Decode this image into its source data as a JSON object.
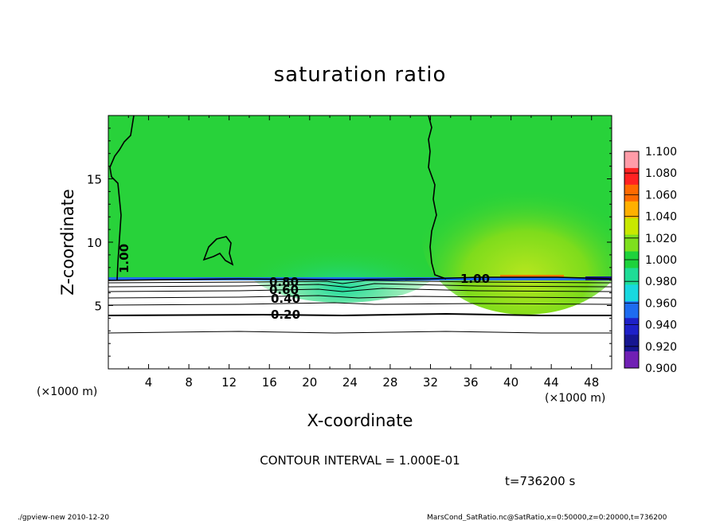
{
  "chart_data": {
    "type": "heatmap",
    "title": "saturation ratio",
    "xlabel": "X-coordinate",
    "ylabel": "Z-coordinate",
    "x_unit": "(×1000 m)",
    "y_unit": "(×1000 m)",
    "xlim": [
      0,
      50
    ],
    "ylim": [
      0,
      20
    ],
    "x_ticks": [
      "4",
      "8",
      "12",
      "16",
      "20",
      "24",
      "28",
      "32",
      "36",
      "40",
      "44",
      "48"
    ],
    "y_ticks": [
      "5",
      "10",
      "15"
    ],
    "contour_interval_text": "CONTOUR INTERVAL = 1.000E-01",
    "time_label": "t=736200 s",
    "contour_labels": [
      "1.00",
      "1.00",
      "0.80",
      "0.60",
      "0.40",
      "0.20"
    ],
    "colorbar": {
      "labels": [
        "1.100",
        "1.080",
        "1.060",
        "1.040",
        "1.020",
        "1.000",
        "0.980",
        "0.960",
        "0.940",
        "0.920",
        "0.900"
      ],
      "colors": [
        "#ff9ca8",
        "#ff2222",
        "#ff6a00",
        "#ffb000",
        "#c8e800",
        "#7ee01e",
        "#1ed23c",
        "#1edc96",
        "#18d8e0",
        "#1e6cf0",
        "#1e20c8",
        "#161691",
        "#7020b4"
      ]
    },
    "fields": {
      "saturated_layer_z": [
        7.1,
        20
      ],
      "saturated_value": 1.0,
      "dry_layer_contours_z": [
        2.8,
        4.2,
        5.0,
        5.6,
        6.1,
        6.5,
        6.8
      ]
    }
  },
  "footer": {
    "left": "./gpview-new   2010-12-20",
    "right": "MarsCond_SatRatio.nc@SatRatio,x=0:50000,z=0:20000,t=736200"
  }
}
